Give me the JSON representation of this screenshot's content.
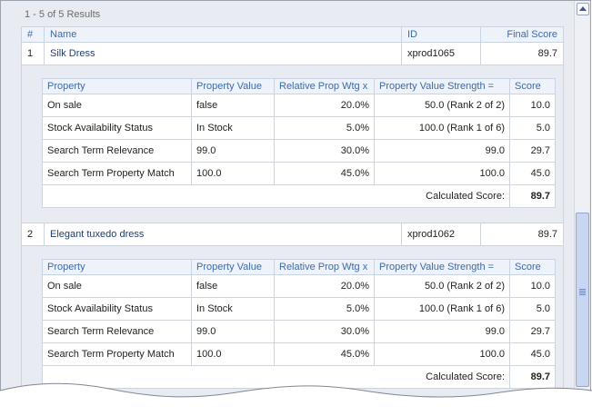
{
  "results_count": "1 - 5 of 5 Results",
  "columns": {
    "num": "#",
    "name": "Name",
    "id": "ID",
    "final_score": "Final Score"
  },
  "prop_columns": {
    "property": "Property",
    "value": "Property Value",
    "rel_wtg": "Relative Prop Wtg x",
    "strength": "Property Value Strength =",
    "score": "Score"
  },
  "products": [
    {
      "num": "1",
      "name": "Silk Dress",
      "id": "xprod1065",
      "final_score": "89.7",
      "properties": [
        {
          "property": "On sale",
          "value": "false",
          "rel_wtg": "20.0%",
          "strength": "50.0 (Rank 2 of 2)",
          "score": "10.0"
        },
        {
          "property": "Stock Availability Status",
          "value": "In Stock",
          "rel_wtg": "5.0%",
          "strength": "100.0 (Rank 1 of 6)",
          "score": "5.0"
        },
        {
          "property": "Search Term Relevance",
          "value": "99.0",
          "rel_wtg": "30.0%",
          "strength": "99.0",
          "score": "29.7"
        },
        {
          "property": "Search Term Property Match",
          "value": "100.0",
          "rel_wtg": "45.0%",
          "strength": "100.0",
          "score": "45.0"
        }
      ],
      "calc_label": "Calculated Score:",
      "calc_value": "89.7"
    },
    {
      "num": "2",
      "name": "Elegant tuxedo dress",
      "id": "xprod1062",
      "final_score": "89.7",
      "properties": [
        {
          "property": "On sale",
          "value": "false",
          "rel_wtg": "20.0%",
          "strength": "50.0 (Rank 2 of 2)",
          "score": "10.0"
        },
        {
          "property": "Stock Availability Status",
          "value": "In Stock",
          "rel_wtg": "5.0%",
          "strength": "100.0 (Rank 1 of 6)",
          "score": "5.0"
        },
        {
          "property": "Search Term Relevance",
          "value": "99.0",
          "rel_wtg": "30.0%",
          "strength": "99.0",
          "score": "29.7"
        },
        {
          "property": "Search Term Property Match",
          "value": "100.0",
          "rel_wtg": "45.0%",
          "strength": "100.0",
          "score": "45.0"
        }
      ],
      "calc_label": "Calculated Score:",
      "calc_value": "89.7"
    }
  ]
}
